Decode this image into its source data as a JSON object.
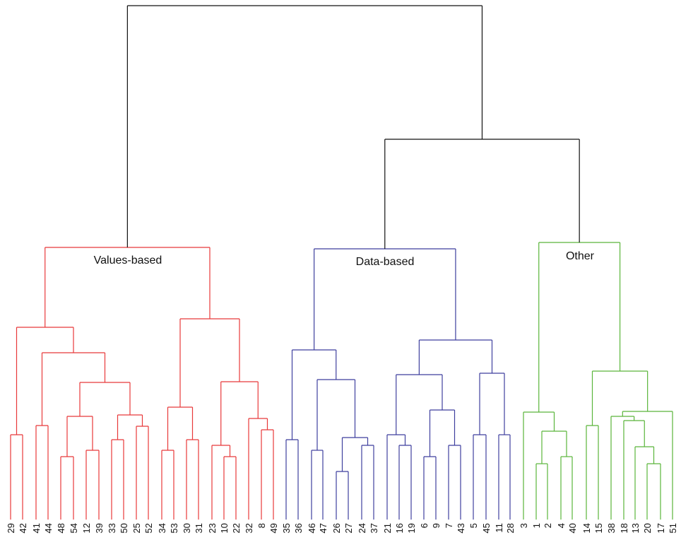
{
  "diagram": {
    "type": "dendrogram",
    "clusters": [
      {
        "name": "Values-based",
        "color": "#e8393a",
        "leaves": [
          "29",
          "42",
          "41",
          "44",
          "48",
          "54",
          "12",
          "39",
          "33",
          "50",
          "25",
          "52",
          "34",
          "53",
          "30",
          "31",
          "23",
          "10",
          "22",
          "32",
          "8",
          "49"
        ]
      },
      {
        "name": "Data-based",
        "color": "#3e3f9e",
        "leaves": [
          "35",
          "36",
          "46",
          "47",
          "26",
          "27",
          "24",
          "37",
          "21",
          "16",
          "19",
          "6",
          "9",
          "7",
          "43",
          "5",
          "45",
          "11",
          "28"
        ]
      },
      {
        "name": "Other",
        "color": "#5ab53a",
        "leaves": [
          "3",
          "1",
          "2",
          "4",
          "40",
          "14",
          "15",
          "38",
          "18",
          "13",
          "20",
          "17",
          "51"
        ]
      }
    ],
    "root_color": "#111111"
  }
}
